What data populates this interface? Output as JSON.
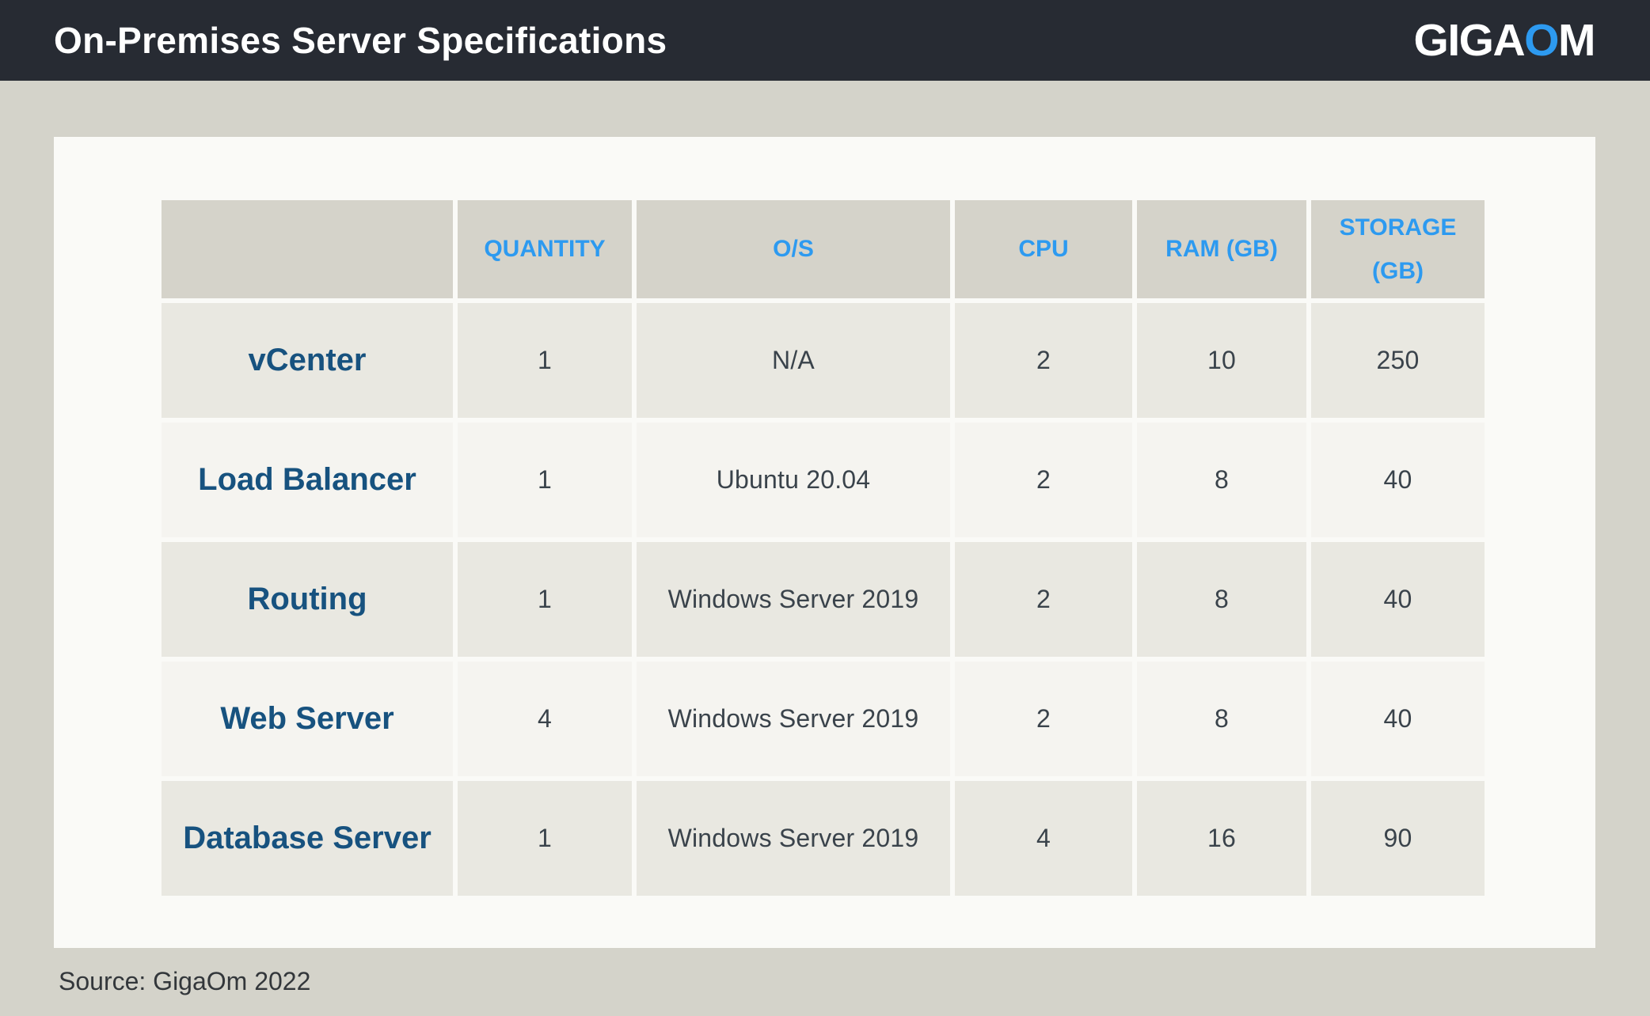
{
  "header": {
    "title": "On-Premises Server Specifications"
  },
  "brand": {
    "giga": "GIGA",
    "o": "O",
    "m": "M"
  },
  "chart_data": {
    "type": "table",
    "title": "On-Premises Server Specifications",
    "columns": [
      "",
      "QUANTITY",
      "O/S",
      "CPU",
      "RAM (GB)",
      "STORAGE (GB)"
    ],
    "rows": [
      [
        "vCenter",
        1,
        "N/A",
        2,
        10,
        250
      ],
      [
        "Load Balancer",
        1,
        "Ubuntu 20.04",
        2,
        8,
        40
      ],
      [
        "Routing",
        1,
        "Windows Server 2019",
        2,
        8,
        40
      ],
      [
        "Web Server",
        4,
        "Windows Server 2019",
        2,
        8,
        40
      ],
      [
        "Database Server",
        1,
        "Windows Server 2019",
        4,
        16,
        90
      ]
    ],
    "source": "Source: GigaOm 2022"
  },
  "colors": {
    "topbar_bg": "#272b33",
    "page_bg": "#d4d3ca",
    "card_bg": "#fafaf7",
    "header_cell_bg": "#d5d3ca",
    "row_odd_bg": "#e9e8e1",
    "row_even_bg": "#f5f4f0",
    "accent_blue": "#2d9af0",
    "row_label_blue": "#17527f",
    "value_text": "#3a434b"
  }
}
